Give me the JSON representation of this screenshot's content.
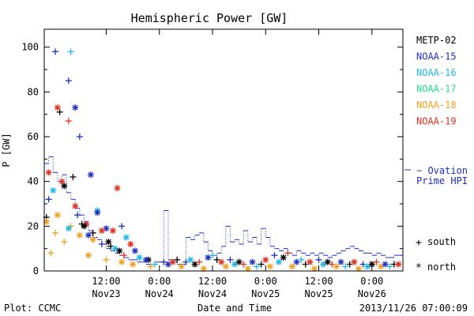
{
  "chart_data": {
    "type": "scatter",
    "title": "Hemispheric Power [GW]",
    "ylabel": "P [GW]",
    "xlabel": "Date and Time",
    "ylim": [
      0,
      108
    ],
    "yticks": [
      0,
      20,
      40,
      60,
      80,
      100
    ],
    "xlim": [
      "2013-11-22T22:00",
      "2013-11-26T07:00"
    ],
    "xticks": [
      {
        "time": "2013-11-23T12:00",
        "line1": "12:00",
        "line2": "Nov23"
      },
      {
        "time": "2013-11-24T00:00",
        "line1": "0:00",
        "line2": "Nov24"
      },
      {
        "time": "2013-11-24T12:00",
        "line1": "12:00",
        "line2": "Nov24"
      },
      {
        "time": "2013-11-25T00:00",
        "line1": "0:00",
        "line2": "Nov25"
      },
      {
        "time": "2013-11-25T12:00",
        "line1": "12:00",
        "line2": "Nov25"
      },
      {
        "time": "2013-11-26T00:00",
        "line1": "0:00",
        "line2": "Nov26"
      }
    ],
    "legend": [
      {
        "name": "METP-02",
        "color": "#000000"
      },
      {
        "name": "NOAA-15",
        "color": "#1f2fbf"
      },
      {
        "name": "NOAA-16",
        "color": "#20b8e8"
      },
      {
        "name": "NOAA-17",
        "color": "#22dd88"
      },
      {
        "name": "NOAA-18",
        "color": "#f0a020"
      },
      {
        "name": "NOAA-19",
        "color": "#e03020"
      }
    ],
    "legend_placement": "right",
    "ovation_label": [
      "− Ovation",
      "Prime HPI"
    ],
    "ovation_color": "#1f2fbf",
    "marker_legend": [
      {
        "symbol": "+",
        "label": "south"
      },
      {
        "symbol": "*",
        "label": "north"
      }
    ],
    "ovation_series": [
      [
        "2013-11-22T22:00",
        48
      ],
      [
        "2013-11-22T23:00",
        51
      ],
      [
        "2013-11-23T00:00",
        44
      ],
      [
        "2013-11-23T01:00",
        40
      ],
      [
        "2013-11-23T02:00",
        43
      ],
      [
        "2013-11-23T03:00",
        35
      ],
      [
        "2013-11-23T04:00",
        32
      ],
      [
        "2013-11-23T05:00",
        28
      ],
      [
        "2013-11-23T06:00",
        25
      ],
      [
        "2013-11-23T07:00",
        22
      ],
      [
        "2013-11-23T08:00",
        18
      ],
      [
        "2013-11-23T09:00",
        15
      ],
      [
        "2013-11-23T10:00",
        14
      ],
      [
        "2013-11-23T11:00",
        12
      ],
      [
        "2013-11-23T12:00",
        10
      ],
      [
        "2013-11-23T13:00",
        9
      ],
      [
        "2013-11-23T14:00",
        8
      ],
      [
        "2013-11-23T15:00",
        7
      ],
      [
        "2013-11-23T16:00",
        6
      ],
      [
        "2013-11-23T17:00",
        5
      ],
      [
        "2013-11-23T18:00",
        5
      ],
      [
        "2013-11-23T19:00",
        4
      ],
      [
        "2013-11-23T20:00",
        4
      ],
      [
        "2013-11-23T21:00",
        3
      ],
      [
        "2013-11-23T22:00",
        3
      ],
      [
        "2013-11-23T23:00",
        4
      ],
      [
        "2013-11-24T00:00",
        4
      ],
      [
        "2013-11-24T01:00",
        27
      ],
      [
        "2013-11-24T02:00",
        5
      ],
      [
        "2013-11-24T03:00",
        4
      ],
      [
        "2013-11-24T04:00",
        3
      ],
      [
        "2013-11-24T05:00",
        3
      ],
      [
        "2013-11-24T06:00",
        15
      ],
      [
        "2013-11-24T07:00",
        14
      ],
      [
        "2013-11-24T08:00",
        16
      ],
      [
        "2013-11-24T09:00",
        17
      ],
      [
        "2013-11-24T10:00",
        13
      ],
      [
        "2013-11-24T11:00",
        9
      ],
      [
        "2013-11-24T12:00",
        7
      ],
      [
        "2013-11-24T13:00",
        8
      ],
      [
        "2013-11-24T14:00",
        11
      ],
      [
        "2013-11-24T15:00",
        20
      ],
      [
        "2013-11-24T16:00",
        13
      ],
      [
        "2013-11-24T17:00",
        14
      ],
      [
        "2013-11-24T18:00",
        12
      ],
      [
        "2013-11-24T19:00",
        18
      ],
      [
        "2013-11-24T20:00",
        13
      ],
      [
        "2013-11-24T21:00",
        15
      ],
      [
        "2013-11-24T22:00",
        12
      ],
      [
        "2013-11-24T23:00",
        19
      ],
      [
        "2013-11-25T00:00",
        15
      ],
      [
        "2013-11-25T01:00",
        11
      ],
      [
        "2013-11-25T02:00",
        10
      ],
      [
        "2013-11-25T03:00",
        9
      ],
      [
        "2013-11-25T04:00",
        10
      ],
      [
        "2013-11-25T05:00",
        8
      ],
      [
        "2013-11-25T06:00",
        7
      ],
      [
        "2013-11-25T07:00",
        9
      ],
      [
        "2013-11-25T08:00",
        8
      ],
      [
        "2013-11-25T09:00",
        7
      ],
      [
        "2013-11-25T10:00",
        8
      ],
      [
        "2013-11-25T11:00",
        7
      ],
      [
        "2013-11-25T12:00",
        8
      ],
      [
        "2013-11-25T13:00",
        7
      ],
      [
        "2013-11-25T14:00",
        6
      ],
      [
        "2013-11-25T15:00",
        7
      ],
      [
        "2013-11-25T16:00",
        8
      ],
      [
        "2013-11-25T17:00",
        9
      ],
      [
        "2013-11-25T18:00",
        10
      ],
      [
        "2013-11-25T19:00",
        11
      ],
      [
        "2013-11-25T20:00",
        10
      ],
      [
        "2013-11-25T21:00",
        9
      ],
      [
        "2013-11-25T22:00",
        8
      ],
      [
        "2013-11-25T23:00",
        8
      ],
      [
        "2013-11-26T00:00",
        7
      ],
      [
        "2013-11-26T01:00",
        8
      ],
      [
        "2013-11-26T02:00",
        7
      ],
      [
        "2013-11-26T03:00",
        6
      ],
      [
        "2013-11-26T04:00",
        6
      ],
      [
        "2013-11-26T05:00",
        7
      ],
      [
        "2013-11-26T06:00",
        7
      ],
      [
        "2013-11-26T07:00",
        7
      ]
    ],
    "satellite_points": [
      {
        "s": "NOAA-15",
        "m": "+",
        "t": "2013-11-23T00:30",
        "v": 98
      },
      {
        "s": "NOAA-16",
        "m": "+",
        "t": "2013-11-23T04:00",
        "v": 98
      },
      {
        "s": "NOAA-15",
        "m": "+",
        "t": "2013-11-23T03:30",
        "v": 85
      },
      {
        "s": "NOAA-15",
        "m": "*",
        "t": "2013-11-23T05:00",
        "v": 73
      },
      {
        "s": "NOAA-19",
        "m": "*",
        "t": "2013-11-23T01:00",
        "v": 73
      },
      {
        "s": "METP-02",
        "m": "+",
        "t": "2013-11-23T01:30",
        "v": 71
      },
      {
        "s": "NOAA-19",
        "m": "+",
        "t": "2013-11-23T03:30",
        "v": 67
      },
      {
        "s": "NOAA-15",
        "m": "+",
        "t": "2013-11-23T06:00",
        "v": 60
      },
      {
        "s": "NOAA-19",
        "m": "*",
        "t": "2013-11-22T23:00",
        "v": 44
      },
      {
        "s": "NOAA-15",
        "m": "*",
        "t": "2013-11-23T08:30",
        "v": 43
      },
      {
        "s": "METP-02",
        "m": "+",
        "t": "2013-11-23T04:30",
        "v": 42
      },
      {
        "s": "NOAA-19",
        "m": "*",
        "t": "2013-11-23T02:00",
        "v": 40
      },
      {
        "s": "METP-02",
        "m": "*",
        "t": "2013-11-23T02:30",
        "v": 38
      },
      {
        "s": "NOAA-16",
        "m": "*",
        "t": "2013-11-23T00:00",
        "v": 36
      },
      {
        "s": "NOAA-19",
        "m": "*",
        "t": "2013-11-23T14:30",
        "v": 37
      },
      {
        "s": "NOAA-15",
        "m": "+",
        "t": "2013-11-22T23:00",
        "v": 32
      },
      {
        "s": "NOAA-19",
        "m": "*",
        "t": "2013-11-23T05:00",
        "v": 29
      },
      {
        "s": "NOAA-16",
        "m": "*",
        "t": "2013-11-23T10:00",
        "v": 27
      },
      {
        "s": "NOAA-15",
        "m": "*",
        "t": "2013-11-23T10:00",
        "v": 26
      },
      {
        "s": "NOAA-18",
        "m": "*",
        "t": "2013-11-23T01:00",
        "v": 25
      },
      {
        "s": "NOAA-15",
        "m": "+",
        "t": "2013-11-23T05:30",
        "v": 25
      },
      {
        "s": "METP-02",
        "m": "+",
        "t": "2013-11-22T22:30",
        "v": 24
      },
      {
        "s": "NOAA-18",
        "m": "*",
        "t": "2013-11-22T22:30",
        "v": 22
      },
      {
        "s": "NOAA-19",
        "m": "*",
        "t": "2013-11-23T07:30",
        "v": 21
      },
      {
        "s": "METP-02",
        "m": "+",
        "t": "2013-11-23T06:30",
        "v": 21
      },
      {
        "s": "METP-02",
        "m": "*",
        "t": "2013-11-23T07:00",
        "v": 20
      },
      {
        "s": "NOAA-18",
        "m": "+",
        "t": "2013-11-23T04:00",
        "v": 20
      },
      {
        "s": "NOAA-16",
        "m": "*",
        "t": "2013-11-23T03:30",
        "v": 19
      },
      {
        "s": "NOAA-15",
        "m": "*",
        "t": "2013-11-23T12:00",
        "v": 19
      },
      {
        "s": "NOAA-15",
        "m": "+",
        "t": "2013-11-23T15:30",
        "v": 20
      },
      {
        "s": "NOAA-19",
        "m": "*",
        "t": "2013-11-23T11:00",
        "v": 18
      },
      {
        "s": "NOAA-19",
        "m": "*",
        "t": "2013-11-23T13:30",
        "v": 18
      },
      {
        "s": "NOAA-18",
        "m": "+",
        "t": "2013-11-23T00:30",
        "v": 17
      },
      {
        "s": "METP-02",
        "m": "+",
        "t": "2013-11-23T09:00",
        "v": 17
      },
      {
        "s": "NOAA-18",
        "m": "*",
        "t": "2013-11-23T06:00",
        "v": 16
      },
      {
        "s": "NOAA-15",
        "m": "*",
        "t": "2013-11-23T08:00",
        "v": 16
      },
      {
        "s": "NOAA-16",
        "m": "*",
        "t": "2013-11-23T16:30",
        "v": 15
      },
      {
        "s": "NOAA-18",
        "m": "*",
        "t": "2013-11-23T09:00",
        "v": 14
      },
      {
        "s": "METP-02",
        "m": "*",
        "t": "2013-11-23T12:30",
        "v": 13
      },
      {
        "s": "NOAA-19",
        "m": "*",
        "t": "2013-11-23T17:30",
        "v": 12
      },
      {
        "s": "NOAA-15",
        "m": "+",
        "t": "2013-11-23T11:00",
        "v": 12
      },
      {
        "s": "NOAA-18",
        "m": "+",
        "t": "2013-11-23T02:30",
        "v": 13
      },
      {
        "s": "METP-02",
        "m": "+",
        "t": "2013-11-23T13:00",
        "v": 11
      },
      {
        "s": "NOAA-16",
        "m": "*",
        "t": "2013-11-23T14:00",
        "v": 10
      },
      {
        "s": "NOAA-18",
        "m": "+",
        "t": "2013-11-22T23:30",
        "v": 8
      },
      {
        "s": "NOAA-15",
        "m": "*",
        "t": "2013-11-23T18:30",
        "v": 9
      },
      {
        "s": "METP-02",
        "m": "*",
        "t": "2013-11-23T15:00",
        "v": 9
      },
      {
        "s": "NOAA-18",
        "m": "*",
        "t": "2013-11-23T08:00",
        "v": 7
      },
      {
        "s": "NOAA-19",
        "m": "+",
        "t": "2013-11-23T16:00",
        "v": 7
      },
      {
        "s": "NOAA-16",
        "m": "*",
        "t": "2013-11-23T19:30",
        "v": 6
      },
      {
        "s": "METP-02",
        "m": "*",
        "t": "2013-11-23T21:30",
        "v": 5
      },
      {
        "s": "NOAA-18",
        "m": "+",
        "t": "2013-11-23T12:00",
        "v": 5
      },
      {
        "s": "NOAA-15",
        "m": "*",
        "t": "2013-11-23T21:00",
        "v": 5
      },
      {
        "s": "NOAA-18",
        "m": "*",
        "t": "2013-11-23T15:30",
        "v": 4
      },
      {
        "s": "NOAA-15",
        "m": "+",
        "t": "2013-11-24T01:00",
        "v": 4
      },
      {
        "s": "NOAA-18",
        "m": "*",
        "t": "2013-11-23T18:00",
        "v": 3
      },
      {
        "s": "NOAA-16",
        "m": "+",
        "t": "2013-11-23T23:00",
        "v": 3
      },
      {
        "s": "NOAA-18",
        "m": "+",
        "t": "2013-11-23T22:00",
        "v": 2
      },
      {
        "s": "NOAA-15",
        "m": "*",
        "t": "2013-11-24T02:00",
        "v": 3
      },
      {
        "s": "NOAA-19",
        "m": "*",
        "t": "2013-11-24T03:00",
        "v": 4
      },
      {
        "s": "METP-02",
        "m": "+",
        "t": "2013-11-24T04:00",
        "v": 5
      },
      {
        "s": "NOAA-18",
        "m": "*",
        "t": "2013-11-24T05:00",
        "v": 2
      },
      {
        "s": "NOAA-15",
        "m": "+",
        "t": "2013-11-24T06:00",
        "v": 4
      },
      {
        "s": "NOAA-16",
        "m": "*",
        "t": "2013-11-24T07:00",
        "v": 5
      },
      {
        "s": "METP-02",
        "m": "*",
        "t": "2013-11-24T08:00",
        "v": 3
      },
      {
        "s": "NOAA-19",
        "m": "+",
        "t": "2013-11-24T09:00",
        "v": 4
      },
      {
        "s": "NOAA-18",
        "m": "*",
        "t": "2013-11-24T10:00",
        "v": 1
      },
      {
        "s": "NOAA-15",
        "m": "*",
        "t": "2013-11-24T11:00",
        "v": 6
      },
      {
        "s": "NOAA-16",
        "m": "+",
        "t": "2013-11-24T12:00",
        "v": 7
      },
      {
        "s": "METP-02",
        "m": "+",
        "t": "2013-11-24T13:00",
        "v": 5
      },
      {
        "s": "NOAA-19",
        "m": "*",
        "t": "2013-11-24T14:00",
        "v": 4
      },
      {
        "s": "NOAA-18",
        "m": "*",
        "t": "2013-11-24T15:00",
        "v": 2
      },
      {
        "s": "NOAA-15",
        "m": "+",
        "t": "2013-11-24T16:00",
        "v": 5
      },
      {
        "s": "NOAA-16",
        "m": "*",
        "t": "2013-11-24T17:00",
        "v": 3
      },
      {
        "s": "METP-02",
        "m": "*",
        "t": "2013-11-24T18:00",
        "v": 4
      },
      {
        "s": "NOAA-19",
        "m": "+",
        "t": "2013-11-24T19:00",
        "v": 3
      },
      {
        "s": "NOAA-18",
        "m": "*",
        "t": "2013-11-24T20:00",
        "v": 1
      },
      {
        "s": "NOAA-15",
        "m": "*",
        "t": "2013-11-24T21:00",
        "v": 4
      },
      {
        "s": "NOAA-16",
        "m": "+",
        "t": "2013-11-24T22:00",
        "v": 2
      },
      {
        "s": "METP-02",
        "m": "+",
        "t": "2013-11-24T23:00",
        "v": 3
      },
      {
        "s": "NOAA-19",
        "m": "*",
        "t": "2013-11-25T00:00",
        "v": 5
      },
      {
        "s": "NOAA-18",
        "m": "*",
        "t": "2013-11-25T01:00",
        "v": 2
      },
      {
        "s": "NOAA-15",
        "m": "+",
        "t": "2013-11-25T02:00",
        "v": 7
      },
      {
        "s": "NOAA-16",
        "m": "*",
        "t": "2013-11-25T03:00",
        "v": 4
      },
      {
        "s": "METP-02",
        "m": "*",
        "t": "2013-11-25T04:00",
        "v": 6
      },
      {
        "s": "NOAA-19",
        "m": "+",
        "t": "2013-11-25T05:00",
        "v": 8
      },
      {
        "s": "NOAA-18",
        "m": "*",
        "t": "2013-11-25T06:00",
        "v": 2
      },
      {
        "s": "NOAA-15",
        "m": "*",
        "t": "2013-11-25T07:00",
        "v": 4
      },
      {
        "s": "NOAA-16",
        "m": "+",
        "t": "2013-11-25T08:00",
        "v": 5
      },
      {
        "s": "METP-02",
        "m": "+",
        "t": "2013-11-25T09:00",
        "v": 3
      },
      {
        "s": "NOAA-19",
        "m": "*",
        "t": "2013-11-25T10:00",
        "v": 4
      },
      {
        "s": "NOAA-18",
        "m": "*",
        "t": "2013-11-25T11:00",
        "v": 1
      },
      {
        "s": "NOAA-15",
        "m": "+",
        "t": "2013-11-25T12:00",
        "v": 5
      },
      {
        "s": "NOAA-16",
        "m": "*",
        "t": "2013-11-25T13:00",
        "v": 3
      },
      {
        "s": "METP-02",
        "m": "*",
        "t": "2013-11-25T14:00",
        "v": 4
      },
      {
        "s": "NOAA-19",
        "m": "+",
        "t": "2013-11-25T15:00",
        "v": 3
      },
      {
        "s": "NOAA-18",
        "m": "*",
        "t": "2013-11-25T16:00",
        "v": 2
      },
      {
        "s": "NOAA-15",
        "m": "*",
        "t": "2013-11-25T17:00",
        "v": 4
      },
      {
        "s": "NOAA-16",
        "m": "+",
        "t": "2013-11-25T18:00",
        "v": 2
      },
      {
        "s": "METP-02",
        "m": "+",
        "t": "2013-11-25T19:00",
        "v": 3
      },
      {
        "s": "NOAA-19",
        "m": "*",
        "t": "2013-11-25T20:00",
        "v": 4
      },
      {
        "s": "NOAA-18",
        "m": "*",
        "t": "2013-11-25T21:00",
        "v": 1
      },
      {
        "s": "NOAA-15",
        "m": "+",
        "t": "2013-11-25T22:00",
        "v": 3
      },
      {
        "s": "NOAA-16",
        "m": "*",
        "t": "2013-11-25T23:00",
        "v": 2
      },
      {
        "s": "METP-02",
        "m": "*",
        "t": "2013-11-26T00:00",
        "v": 3
      },
      {
        "s": "NOAA-19",
        "m": "+",
        "t": "2013-11-26T01:00",
        "v": 4
      },
      {
        "s": "NOAA-18",
        "m": "*",
        "t": "2013-11-26T02:00",
        "v": 2
      },
      {
        "s": "NOAA-15",
        "m": "*",
        "t": "2013-11-26T03:00",
        "v": 3
      },
      {
        "s": "NOAA-16",
        "m": "+",
        "t": "2013-11-26T04:00",
        "v": 2
      },
      {
        "s": "METP-02",
        "m": "+",
        "t": "2013-11-26T05:00",
        "v": 3
      },
      {
        "s": "NOAA-19",
        "m": "*",
        "t": "2013-11-26T06:00",
        "v": 3
      }
    ]
  },
  "footer": {
    "left": "Plot: CCMC",
    "center": "Date and Time",
    "right": "2013/11/26 07:00:09"
  }
}
